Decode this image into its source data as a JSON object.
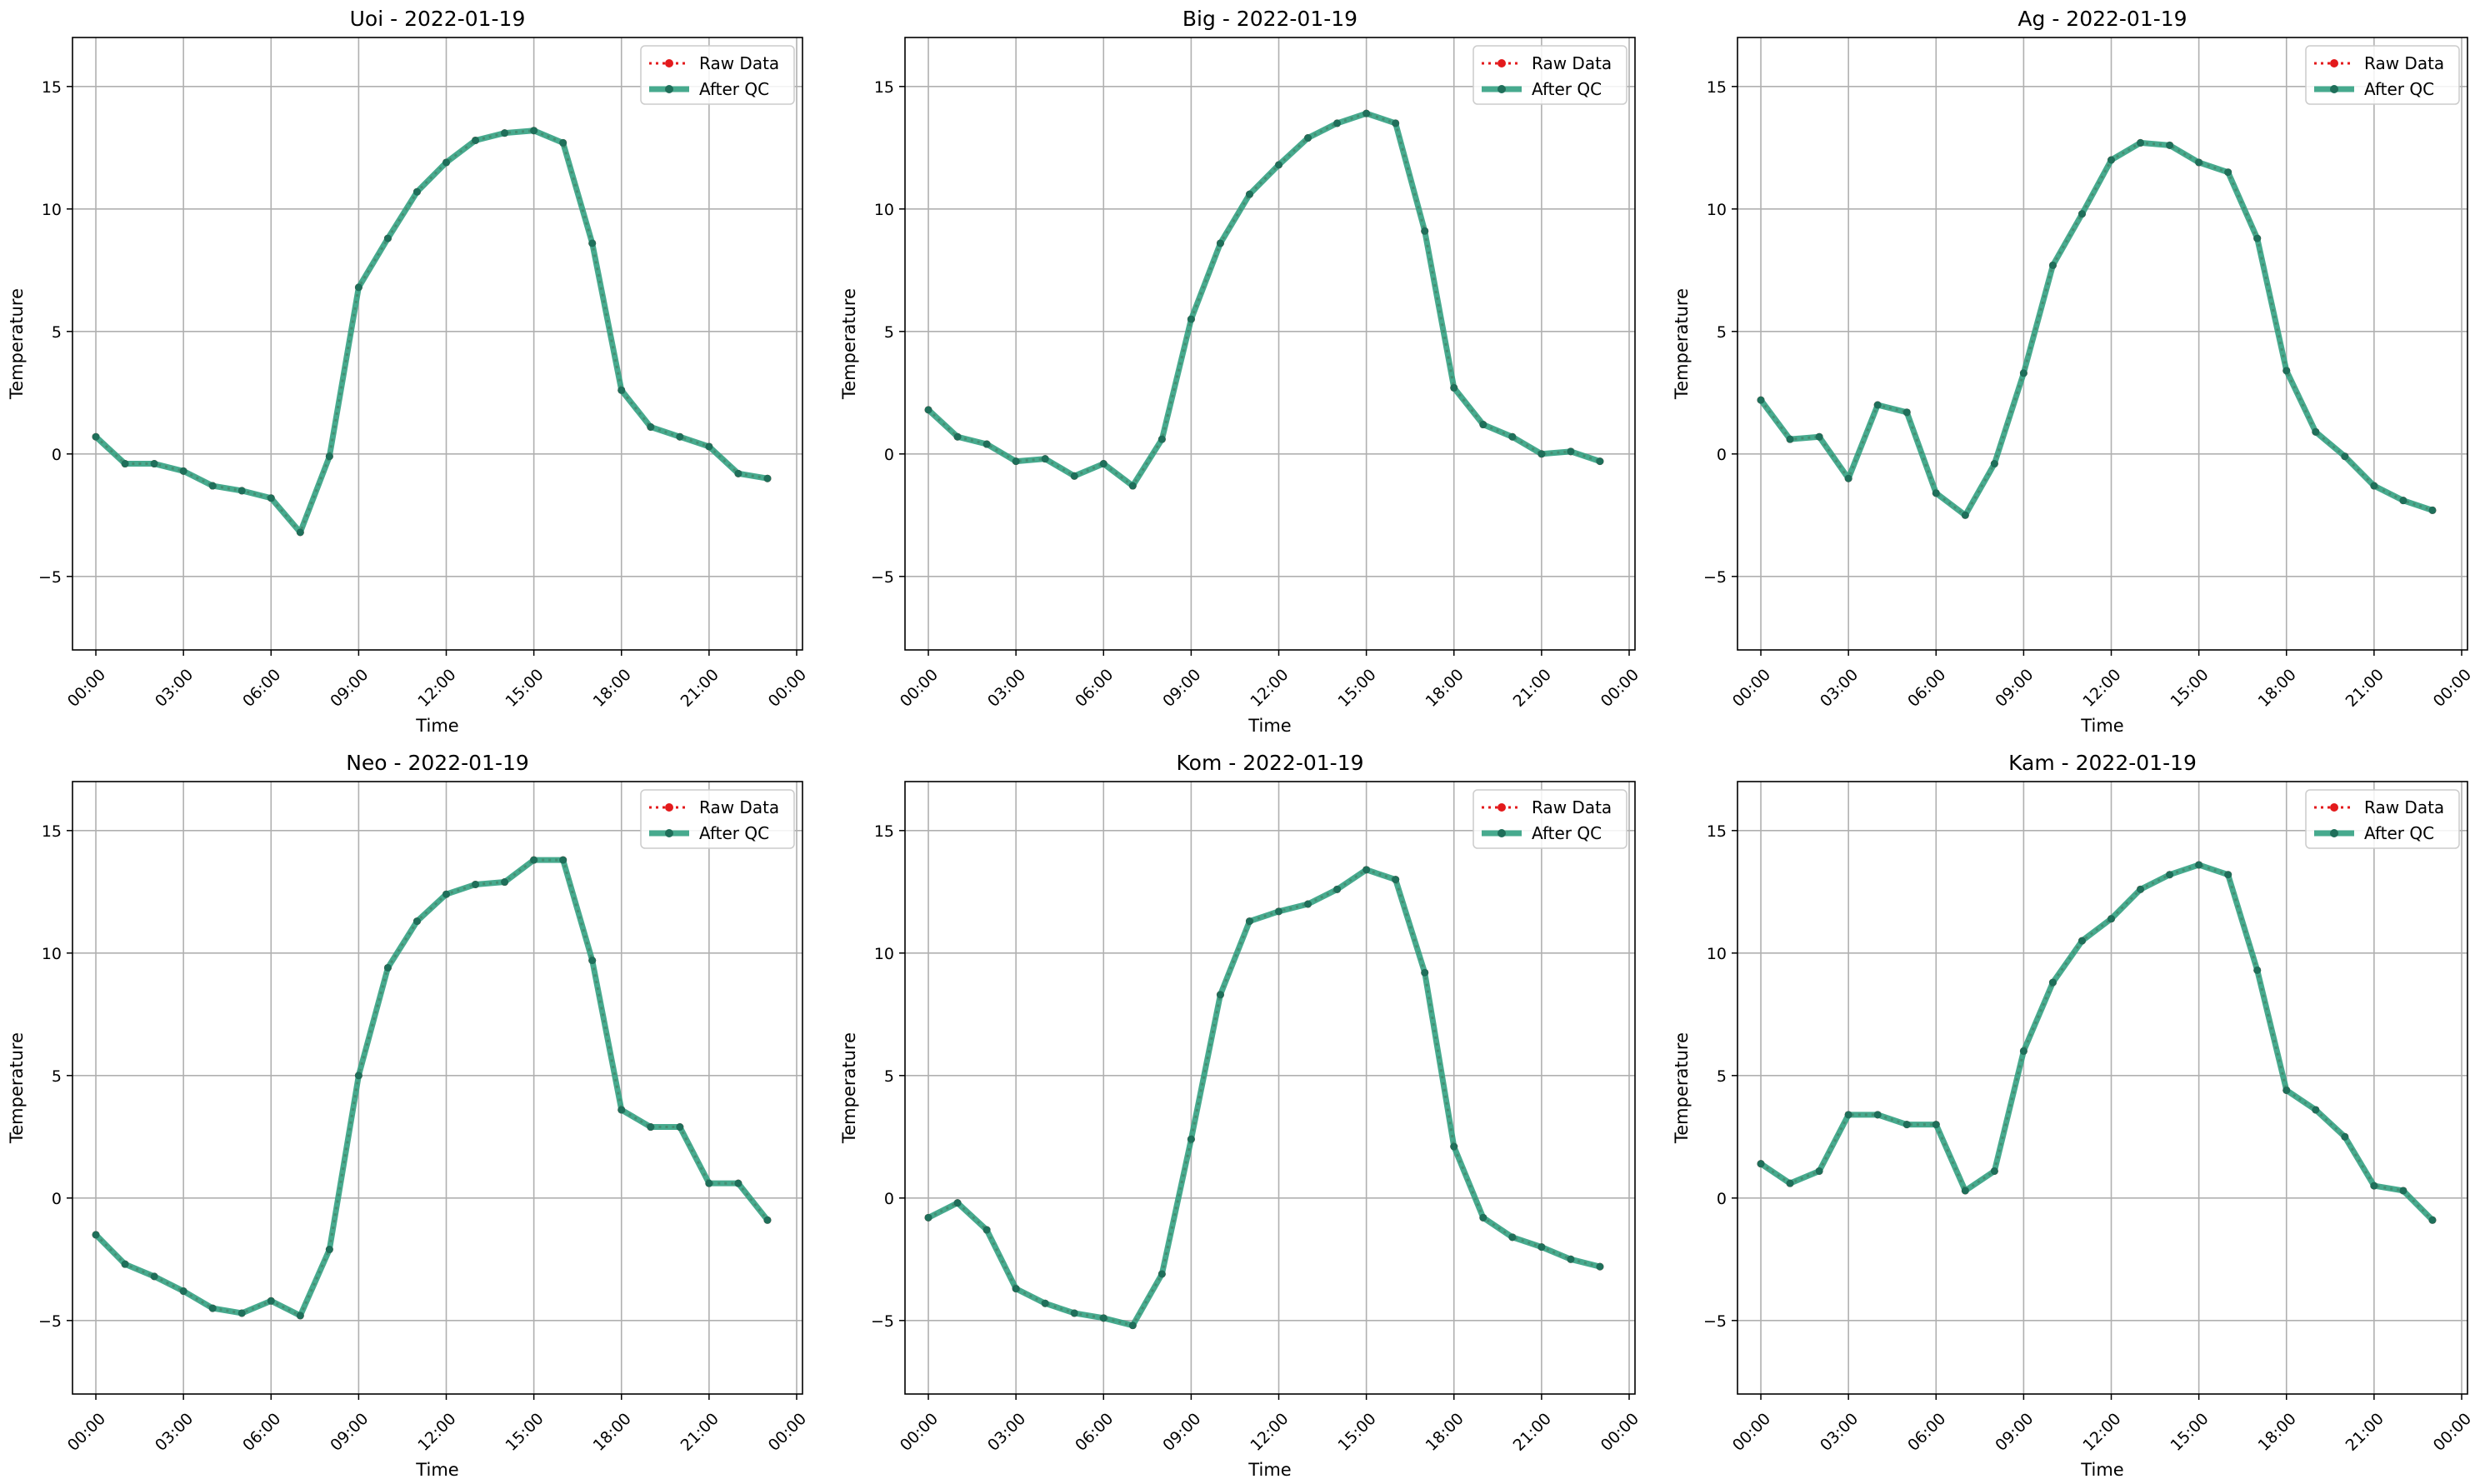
{
  "legend": {
    "raw_label": "Raw Data",
    "qc_label": "After QC"
  },
  "colors": {
    "raw": "#e31a1c",
    "qc": "#2e9e7e",
    "qc_marker": "#1f6f5a",
    "grid": "#b0b0b0"
  },
  "chart_data": [
    {
      "type": "line",
      "title": "Uoi - 2022-01-19",
      "xlabel": "Time",
      "ylabel": "Temperature",
      "ylim": [
        -8,
        17
      ],
      "xlim": [
        -0.8,
        24.2
      ],
      "yticks": [
        -5,
        0,
        5,
        10,
        15
      ],
      "xticks": [
        0,
        3,
        6,
        9,
        12,
        15,
        18,
        21,
        24
      ],
      "xtick_labels": [
        "00:00",
        "03:00",
        "06:00",
        "09:00",
        "12:00",
        "15:00",
        "18:00",
        "21:00",
        "00:00"
      ],
      "grid": true,
      "legend_position": "top-right",
      "x": [
        0,
        1,
        2,
        3,
        4,
        5,
        6,
        7,
        8,
        9,
        10,
        11,
        12,
        13,
        14,
        15,
        16,
        17,
        18,
        19,
        20,
        21,
        22,
        23
      ],
      "series": [
        {
          "name": "Raw Data",
          "values": [
            0.7,
            -0.4,
            -0.4,
            -0.7,
            -1.3,
            -1.5,
            -1.8,
            -3.2,
            -0.1,
            6.8,
            8.8,
            10.7,
            11.9,
            12.8,
            13.1,
            13.2,
            12.7,
            8.6,
            2.6,
            1.1,
            0.7,
            0.3,
            -0.8,
            -1.0
          ]
        },
        {
          "name": "After QC",
          "values": [
            0.7,
            -0.4,
            -0.4,
            -0.7,
            -1.3,
            -1.5,
            -1.8,
            -3.2,
            -0.1,
            6.8,
            8.8,
            10.7,
            11.9,
            12.8,
            13.1,
            13.2,
            12.7,
            8.6,
            2.6,
            1.1,
            0.7,
            0.3,
            -0.8,
            -1.0
          ]
        }
      ]
    },
    {
      "type": "line",
      "title": "Big - 2022-01-19",
      "xlabel": "Time",
      "ylabel": "Temperature",
      "ylim": [
        -8,
        17
      ],
      "xlim": [
        -0.8,
        24.2
      ],
      "yticks": [
        -5,
        0,
        5,
        10,
        15
      ],
      "xticks": [
        0,
        3,
        6,
        9,
        12,
        15,
        18,
        21,
        24
      ],
      "xtick_labels": [
        "00:00",
        "03:00",
        "06:00",
        "09:00",
        "12:00",
        "15:00",
        "18:00",
        "21:00",
        "00:00"
      ],
      "grid": true,
      "legend_position": "top-right",
      "x": [
        0,
        1,
        2,
        3,
        4,
        5,
        6,
        7,
        8,
        9,
        10,
        11,
        12,
        13,
        14,
        15,
        16,
        17,
        18,
        19,
        20,
        21,
        22,
        23
      ],
      "series": [
        {
          "name": "Raw Data",
          "values": [
            1.8,
            0.7,
            0.4,
            -0.3,
            -0.2,
            -0.9,
            -0.4,
            -1.3,
            0.6,
            5.5,
            8.6,
            10.6,
            11.8,
            12.9,
            13.5,
            13.9,
            13.5,
            9.1,
            2.7,
            1.2,
            0.7,
            0.0,
            0.1,
            -0.3
          ]
        },
        {
          "name": "After QC",
          "values": [
            1.8,
            0.7,
            0.4,
            -0.3,
            -0.2,
            -0.9,
            -0.4,
            -1.3,
            0.6,
            5.5,
            8.6,
            10.6,
            11.8,
            12.9,
            13.5,
            13.9,
            13.5,
            9.1,
            2.7,
            1.2,
            0.7,
            0.0,
            0.1,
            -0.3
          ]
        }
      ]
    },
    {
      "type": "line",
      "title": "Ag - 2022-01-19",
      "xlabel": "Time",
      "ylabel": "Temperature",
      "ylim": [
        -8,
        17
      ],
      "xlim": [
        -0.8,
        24.2
      ],
      "yticks": [
        -5,
        0,
        5,
        10,
        15
      ],
      "xticks": [
        0,
        3,
        6,
        9,
        12,
        15,
        18,
        21,
        24
      ],
      "xtick_labels": [
        "00:00",
        "03:00",
        "06:00",
        "09:00",
        "12:00",
        "15:00",
        "18:00",
        "21:00",
        "00:00"
      ],
      "grid": true,
      "legend_position": "top-right",
      "x": [
        0,
        1,
        2,
        3,
        4,
        5,
        6,
        7,
        8,
        9,
        10,
        11,
        12,
        13,
        14,
        15,
        16,
        17,
        18,
        19,
        20,
        21,
        22,
        23
      ],
      "series": [
        {
          "name": "Raw Data",
          "values": [
            2.2,
            0.6,
            0.7,
            -1.0,
            2.0,
            1.7,
            -1.6,
            -2.5,
            -0.4,
            3.3,
            7.7,
            9.8,
            12.0,
            12.7,
            12.6,
            11.9,
            11.5,
            8.8,
            3.4,
            0.9,
            -0.1,
            -1.3,
            -1.9,
            -2.3
          ]
        },
        {
          "name": "After QC",
          "values": [
            2.2,
            0.6,
            0.7,
            -1.0,
            2.0,
            1.7,
            -1.6,
            -2.5,
            -0.4,
            3.3,
            7.7,
            9.8,
            12.0,
            12.7,
            12.6,
            11.9,
            11.5,
            8.8,
            3.4,
            0.9,
            -0.1,
            -1.3,
            -1.9,
            -2.3
          ]
        }
      ]
    },
    {
      "type": "line",
      "title": "Neo - 2022-01-19",
      "xlabel": "Time",
      "ylabel": "Temperature",
      "ylim": [
        -8,
        17
      ],
      "xlim": [
        -0.8,
        24.2
      ],
      "yticks": [
        -5,
        0,
        5,
        10,
        15
      ],
      "xticks": [
        0,
        3,
        6,
        9,
        12,
        15,
        18,
        21,
        24
      ],
      "xtick_labels": [
        "00:00",
        "03:00",
        "06:00",
        "09:00",
        "12:00",
        "15:00",
        "18:00",
        "21:00",
        "00:00"
      ],
      "grid": true,
      "legend_position": "top-right",
      "x": [
        0,
        1,
        2,
        3,
        4,
        5,
        6,
        7,
        8,
        9,
        10,
        11,
        12,
        13,
        14,
        15,
        16,
        17,
        18,
        19,
        20,
        21,
        22,
        23
      ],
      "series": [
        {
          "name": "Raw Data",
          "values": [
            -1.5,
            -2.7,
            -3.2,
            -3.8,
            -4.5,
            -4.7,
            -4.2,
            -4.8,
            -2.1,
            5.0,
            9.4,
            11.3,
            12.4,
            12.8,
            12.9,
            13.8,
            13.8,
            9.7,
            3.6,
            2.9,
            2.9,
            0.6,
            0.6,
            -0.9
          ]
        },
        {
          "name": "After QC",
          "values": [
            -1.5,
            -2.7,
            -3.2,
            -3.8,
            -4.5,
            -4.7,
            -4.2,
            -4.8,
            -2.1,
            5.0,
            9.4,
            11.3,
            12.4,
            12.8,
            12.9,
            13.8,
            13.8,
            9.7,
            3.6,
            2.9,
            2.9,
            0.6,
            0.6,
            -0.9
          ]
        }
      ]
    },
    {
      "type": "line",
      "title": "Kom - 2022-01-19",
      "xlabel": "Time",
      "ylabel": "Temperature",
      "ylim": [
        -8,
        17
      ],
      "xlim": [
        -0.8,
        24.2
      ],
      "yticks": [
        -5,
        0,
        5,
        10,
        15
      ],
      "xticks": [
        0,
        3,
        6,
        9,
        12,
        15,
        18,
        21,
        24
      ],
      "xtick_labels": [
        "00:00",
        "03:00",
        "06:00",
        "09:00",
        "12:00",
        "15:00",
        "18:00",
        "21:00",
        "00:00"
      ],
      "grid": true,
      "legend_position": "top-right",
      "x": [
        0,
        1,
        2,
        3,
        4,
        5,
        6,
        7,
        8,
        9,
        10,
        11,
        12,
        13,
        14,
        15,
        16,
        17,
        18,
        19,
        20,
        21,
        22,
        23
      ],
      "series": [
        {
          "name": "Raw Data",
          "values": [
            -0.8,
            -0.2,
            -1.3,
            -3.7,
            -4.3,
            -4.7,
            -4.9,
            -5.2,
            -3.1,
            2.4,
            8.3,
            11.3,
            11.7,
            12.0,
            12.6,
            13.4,
            13.0,
            9.2,
            2.1,
            -0.8,
            -1.6,
            -2.0,
            -2.5,
            -2.8
          ]
        },
        {
          "name": "After QC",
          "values": [
            -0.8,
            -0.2,
            -1.3,
            -3.7,
            -4.3,
            -4.7,
            -4.9,
            -5.2,
            -3.1,
            2.4,
            8.3,
            11.3,
            11.7,
            12.0,
            12.6,
            13.4,
            13.0,
            9.2,
            2.1,
            -0.8,
            -1.6,
            -2.0,
            -2.5,
            -2.8
          ]
        }
      ]
    },
    {
      "type": "line",
      "title": "Kam - 2022-01-19",
      "xlabel": "Time",
      "ylabel": "Temperature",
      "ylim": [
        -8,
        17
      ],
      "xlim": [
        -0.8,
        24.2
      ],
      "yticks": [
        -5,
        0,
        5,
        10,
        15
      ],
      "xticks": [
        0,
        3,
        6,
        9,
        12,
        15,
        18,
        21,
        24
      ],
      "xtick_labels": [
        "00:00",
        "03:00",
        "06:00",
        "09:00",
        "12:00",
        "15:00",
        "18:00",
        "21:00",
        "00:00"
      ],
      "grid": true,
      "legend_position": "top-right",
      "x": [
        0,
        1,
        2,
        3,
        4,
        5,
        6,
        7,
        8,
        9,
        10,
        11,
        12,
        13,
        14,
        15,
        16,
        17,
        18,
        19,
        20,
        21,
        22,
        23
      ],
      "series": [
        {
          "name": "Raw Data",
          "values": [
            1.4,
            0.6,
            1.1,
            3.4,
            3.4,
            3.0,
            3.0,
            0.3,
            1.1,
            6.0,
            8.8,
            10.5,
            11.4,
            12.6,
            13.2,
            13.6,
            13.2,
            9.3,
            4.4,
            3.6,
            2.5,
            0.5,
            0.3,
            -0.9
          ]
        },
        {
          "name": "After QC",
          "values": [
            1.4,
            0.6,
            1.1,
            3.4,
            3.4,
            3.0,
            3.0,
            0.3,
            1.1,
            6.0,
            8.8,
            10.5,
            11.4,
            12.6,
            13.2,
            13.6,
            13.2,
            9.3,
            4.4,
            3.6,
            2.5,
            0.5,
            0.3,
            -0.9
          ]
        }
      ]
    }
  ]
}
